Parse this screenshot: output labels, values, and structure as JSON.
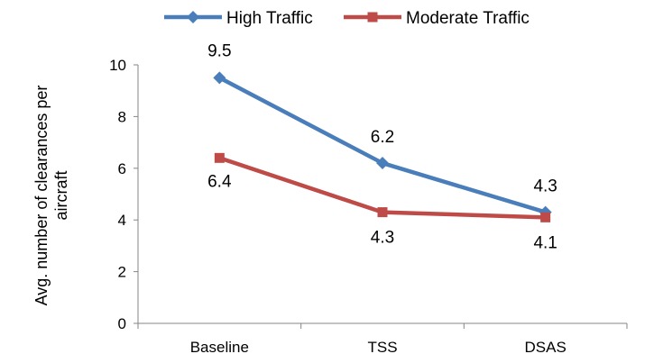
{
  "chart_data": {
    "type": "line",
    "categories": [
      "Baseline",
      "TSS",
      "DSAS"
    ],
    "series": [
      {
        "name": "High Traffic",
        "values": [
          9.5,
          6.2,
          4.3
        ],
        "labels": [
          "9.5",
          "6.2",
          "4.3"
        ],
        "color": "#4a7ebb",
        "marker": "diamond"
      },
      {
        "name": "Moderate Traffic",
        "values": [
          6.4,
          4.3,
          4.1
        ],
        "labels": [
          "6.4",
          "4.3",
          "4.1"
        ],
        "color": "#be4b48",
        "marker": "square"
      }
    ],
    "ylabel_lines": [
      "Avg. number of clearances per",
      "aircraft"
    ],
    "xlabel": "",
    "ylim": [
      0,
      10
    ],
    "yticks": [
      0,
      2,
      4,
      6,
      8,
      10
    ],
    "ytick_labels": [
      "0",
      "2",
      "4",
      "6",
      "8",
      "10"
    ],
    "grid": false,
    "legend": "top-center"
  }
}
